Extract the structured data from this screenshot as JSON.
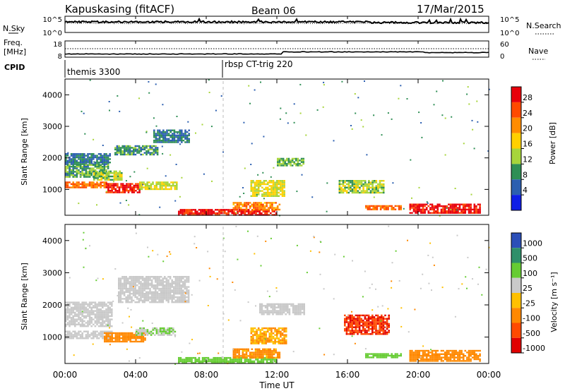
{
  "header": {
    "station": "Kapuskasing (fitACF)",
    "beam": "Beam 06",
    "date": "17/Mar/2015"
  },
  "noise_panel": {
    "left_label": "N.Sky",
    "right_label": "N.Search",
    "left_ticks": [
      "10^5",
      "10^0"
    ],
    "right_ticks": [
      "10^5",
      "10^0"
    ]
  },
  "freq_panel": {
    "left_label_1": "Freq.",
    "left_label_2": "[MHz]",
    "right_label": "Nave",
    "left_ticks": [
      "18",
      "8"
    ],
    "right_ticks": [
      "60",
      "0"
    ]
  },
  "cpid_panel": {
    "label": "CPID",
    "segments": [
      {
        "name": "themis 3300",
        "start_hour": 0
      },
      {
        "name": "rbsp CT-trig 220",
        "start_hour": 8.9
      }
    ]
  },
  "power_panel": {
    "ylabel": "Slant Range [km]",
    "yticks": [
      1000,
      2000,
      3000,
      4000
    ],
    "colorbar_label": "Power [dB]",
    "colorbar_ticks": [
      "28",
      "24",
      "20",
      "16",
      "12",
      "8",
      "4"
    ],
    "colors": [
      "#e8000b",
      "#ff4a00",
      "#ff8c00",
      "#ffd000",
      "#a7d53b",
      "#2f8f55",
      "#2c5fb0",
      "#0f1ee6"
    ]
  },
  "velocity_panel": {
    "ylabel": "Slant Range [km]",
    "yticks": [
      1000,
      2000,
      3000,
      4000
    ],
    "colorbar_label": "Velocity [m s⁻¹]",
    "colorbar_ticks": [
      "1000",
      "500",
      "100",
      "25",
      "-25",
      "-100",
      "-500",
      "-1000"
    ],
    "colors": [
      "#2b4fb8",
      "#2f8f6a",
      "#66cc33",
      "#c9c9c9",
      "#ffc000",
      "#ff8800",
      "#ff4a00",
      "#e00000"
    ]
  },
  "x_axis": {
    "label": "Time UT",
    "ticks": [
      "00:00",
      "04:00",
      "08:00",
      "12:00",
      "16:00",
      "20:00",
      "00:00"
    ]
  },
  "chart_data": {
    "type": "heatmap",
    "x_range_hours": [
      0,
      24
    ],
    "y_range_km": [
      180,
      4500
    ],
    "power_regions": [
      {
        "t": [
          0,
          2.5
        ],
        "r": [
          1800,
          2150
        ],
        "dB": 6
      },
      {
        "t": [
          0,
          2.4
        ],
        "r": [
          1400,
          1800
        ],
        "dB": 9
      },
      {
        "t": [
          0,
          2.3
        ],
        "r": [
          1050,
          1250
        ],
        "dB": 22
      },
      {
        "t": [
          2.3,
          4.2
        ],
        "r": [
          900,
          1200
        ],
        "dB": 27
      },
      {
        "t": [
          4.2,
          6.3
        ],
        "r": [
          1000,
          1250
        ],
        "dB": 14
      },
      {
        "t": [
          1.6,
          3.2
        ],
        "r": [
          1300,
          1600
        ],
        "dB": 12
      },
      {
        "t": [
          2.8,
          5.2
        ],
        "r": [
          2100,
          2400
        ],
        "dB": 8
      },
      {
        "t": [
          5.0,
          7.0
        ],
        "r": [
          2500,
          2900
        ],
        "dB": 6
      },
      {
        "t": [
          6.4,
          12.0
        ],
        "r": [
          200,
          380
        ],
        "dB": 27
      },
      {
        "t": [
          9.5,
          12.2
        ],
        "r": [
          380,
          600
        ],
        "dB": 20
      },
      {
        "t": [
          10.5,
          12.4
        ],
        "r": [
          800,
          1300
        ],
        "dB": 14
      },
      {
        "t": [
          12.0,
          13.5
        ],
        "r": [
          1750,
          2000
        ],
        "dB": 10
      },
      {
        "t": [
          15.5,
          18.0
        ],
        "r": [
          900,
          1300
        ],
        "dB": 12
      },
      {
        "t": [
          17.0,
          19.0
        ],
        "r": [
          350,
          500
        ],
        "dB": 22
      },
      {
        "t": [
          19.5,
          23.5
        ],
        "r": [
          250,
          550
        ],
        "dB": 28
      }
    ],
    "velocity_regions": [
      {
        "t": [
          0,
          2.6
        ],
        "r": [
          1350,
          2100
        ],
        "v": 10
      },
      {
        "t": [
          0,
          2.6
        ],
        "r": [
          950,
          1200
        ],
        "v": 10
      },
      {
        "t": [
          2.2,
          4.5
        ],
        "r": [
          850,
          1150
        ],
        "v": -90
      },
      {
        "t": [
          4.0,
          6.2
        ],
        "r": [
          1050,
          1300
        ],
        "v": 60
      },
      {
        "t": [
          3.0,
          7.0
        ],
        "r": [
          2100,
          2900
        ],
        "v": 10
      },
      {
        "t": [
          6.4,
          12.0
        ],
        "r": [
          200,
          380
        ],
        "v": 120
      },
      {
        "t": [
          9.5,
          12.2
        ],
        "r": [
          380,
          650
        ],
        "v": -80
      },
      {
        "t": [
          11.0,
          13.6
        ],
        "r": [
          1700,
          2050
        ],
        "v": 10
      },
      {
        "t": [
          10.5,
          12.5
        ],
        "r": [
          800,
          1300
        ],
        "v": -60
      },
      {
        "t": [
          15.8,
          18.4
        ],
        "r": [
          1100,
          1700
        ],
        "v": -700
      },
      {
        "t": [
          17.0,
          19.0
        ],
        "r": [
          350,
          500
        ],
        "v": 90
      },
      {
        "t": [
          19.5,
          23.5
        ],
        "r": [
          250,
          600
        ],
        "v": -90
      }
    ]
  }
}
